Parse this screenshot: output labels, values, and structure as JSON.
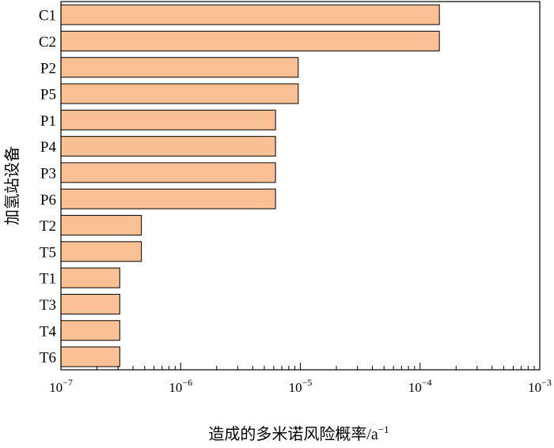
{
  "chart_data": {
    "type": "bar",
    "orientation": "horizontal",
    "x_scale": "log",
    "xlim": [
      1e-07,
      0.001
    ],
    "grid": false,
    "categories": [
      "C1",
      "C2",
      "P2",
      "P5",
      "P1",
      "P4",
      "P3",
      "P6",
      "T2",
      "T5",
      "T1",
      "T3",
      "T4",
      "T6"
    ],
    "values": [
      0.000145,
      0.000145,
      9.6e-06,
      9.6e-06,
      6.2e-06,
      6.2e-06,
      6.2e-06,
      6.2e-06,
      4.7e-07,
      4.7e-07,
      3.1e-07,
      3.1e-07,
      3.1e-07,
      3.1e-07
    ],
    "bar_color": "#F9C093",
    "bar_edge_color": "#000000",
    "xticks": [
      {
        "base": "10",
        "exp": "−7"
      },
      {
        "base": "10",
        "exp": "−6"
      },
      {
        "base": "10",
        "exp": "−5"
      },
      {
        "base": "10",
        "exp": "−4"
      },
      {
        "base": "10",
        "exp": "−3"
      }
    ],
    "xlabel": {
      "text": "造成的多米诺风险概率/a",
      "sup": "−1"
    },
    "ylabel": "加氢站设备"
  }
}
